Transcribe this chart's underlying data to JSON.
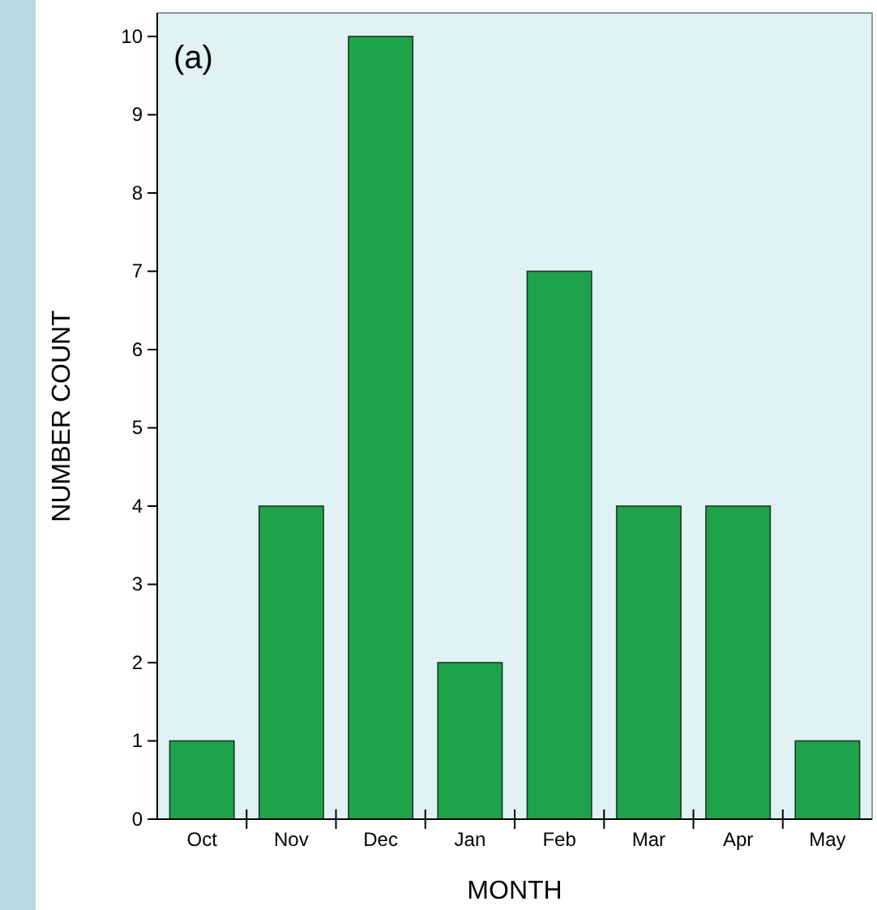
{
  "chart_data": {
    "type": "bar",
    "xlabel": "MONTH",
    "ylabel": "NUMBER COUNT",
    "annotations": [
      "(a)"
    ],
    "categories": [
      "Oct",
      "Nov",
      "Dec",
      "Jan",
      "Feb",
      "Mar",
      "Apr",
      "May"
    ],
    "values": [
      1,
      4,
      10,
      2,
      7,
      4,
      4,
      1
    ],
    "color": "#1fa34a",
    "ylim": [
      0,
      10.3
    ],
    "yticks": [
      0,
      1,
      2,
      3,
      4,
      5,
      6,
      7,
      8,
      9,
      10
    ],
    "grid": false
  }
}
